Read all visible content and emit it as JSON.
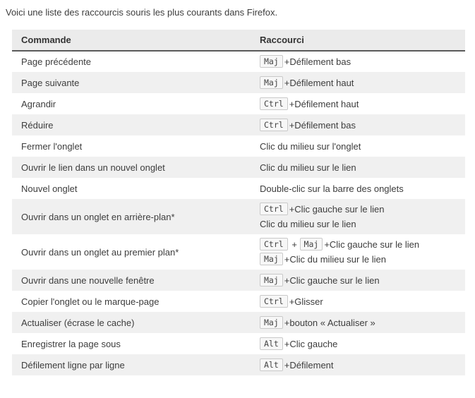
{
  "page": {
    "intro": "Voici une liste des raccourcis souris les plus courants dans Firefox."
  },
  "table": {
    "headers": {
      "command": "Commande",
      "shortcut": "Raccourci"
    },
    "rows": [
      {
        "command": "Page précédente",
        "shortcut_lines": [
          [
            {
              "kbd": "Maj"
            },
            {
              "text": "+Défilement bas"
            }
          ]
        ]
      },
      {
        "command": "Page suivante",
        "shortcut_lines": [
          [
            {
              "kbd": "Maj"
            },
            {
              "text": "+Défilement haut"
            }
          ]
        ]
      },
      {
        "command": "Agrandir",
        "shortcut_lines": [
          [
            {
              "kbd": "Ctrl"
            },
            {
              "text": "+Défilement haut"
            }
          ]
        ]
      },
      {
        "command": "Réduire",
        "shortcut_lines": [
          [
            {
              "kbd": "Ctrl"
            },
            {
              "text": "+Défilement bas"
            }
          ]
        ]
      },
      {
        "command": "Fermer l'onglet",
        "shortcut_lines": [
          [
            {
              "text": "Clic du milieu sur l'onglet"
            }
          ]
        ]
      },
      {
        "command": "Ouvrir le lien dans un nouvel onglet",
        "shortcut_lines": [
          [
            {
              "text": "Clic du milieu sur le lien"
            }
          ]
        ]
      },
      {
        "command": "Nouvel onglet",
        "shortcut_lines": [
          [
            {
              "text": "Double-clic sur la barre des onglets"
            }
          ]
        ]
      },
      {
        "command": "Ouvrir dans un onglet en arrière-plan*",
        "shortcut_lines": [
          [
            {
              "kbd": "Ctrl"
            },
            {
              "text": "+Clic gauche sur le lien"
            }
          ],
          [
            {
              "text": "Clic du milieu sur le lien"
            }
          ]
        ]
      },
      {
        "command": "Ouvrir dans un onglet au premier plan*",
        "shortcut_lines": [
          [
            {
              "kbd": "Ctrl"
            },
            {
              "text": " + "
            },
            {
              "kbd": "Maj"
            },
            {
              "text": "+Clic gauche sur le lien"
            }
          ],
          [
            {
              "kbd": "Maj"
            },
            {
              "text": "+Clic du milieu sur le lien"
            }
          ]
        ]
      },
      {
        "command": "Ouvrir dans une nouvelle fenêtre",
        "shortcut_lines": [
          [
            {
              "kbd": "Maj"
            },
            {
              "text": "+Clic gauche sur le lien"
            }
          ]
        ]
      },
      {
        "command": "Copier l'onglet ou le marque-page",
        "shortcut_lines": [
          [
            {
              "kbd": "Ctrl"
            },
            {
              "text": "+Glisser"
            }
          ]
        ]
      },
      {
        "command": "Actualiser (écrase le cache)",
        "shortcut_lines": [
          [
            {
              "kbd": "Maj"
            },
            {
              "text": "+bouton « Actualiser »"
            }
          ]
        ]
      },
      {
        "command": "Enregistrer la page sous",
        "shortcut_lines": [
          [
            {
              "kbd": "Alt"
            },
            {
              "text": "+Clic gauche"
            }
          ]
        ]
      },
      {
        "command": "Défilement ligne par ligne",
        "shortcut_lines": [
          [
            {
              "kbd": "Alt"
            },
            {
              "text": "+Défilement"
            }
          ]
        ]
      }
    ]
  },
  "colors": {
    "header_bg": "#ebebeb",
    "header_border": "#5a5a5a",
    "alt_row_bg": "#f0f0f0",
    "text": "#3d3d3d",
    "kbd_bg": "#f7f7f7",
    "kbd_border": "#c9c9c9"
  }
}
